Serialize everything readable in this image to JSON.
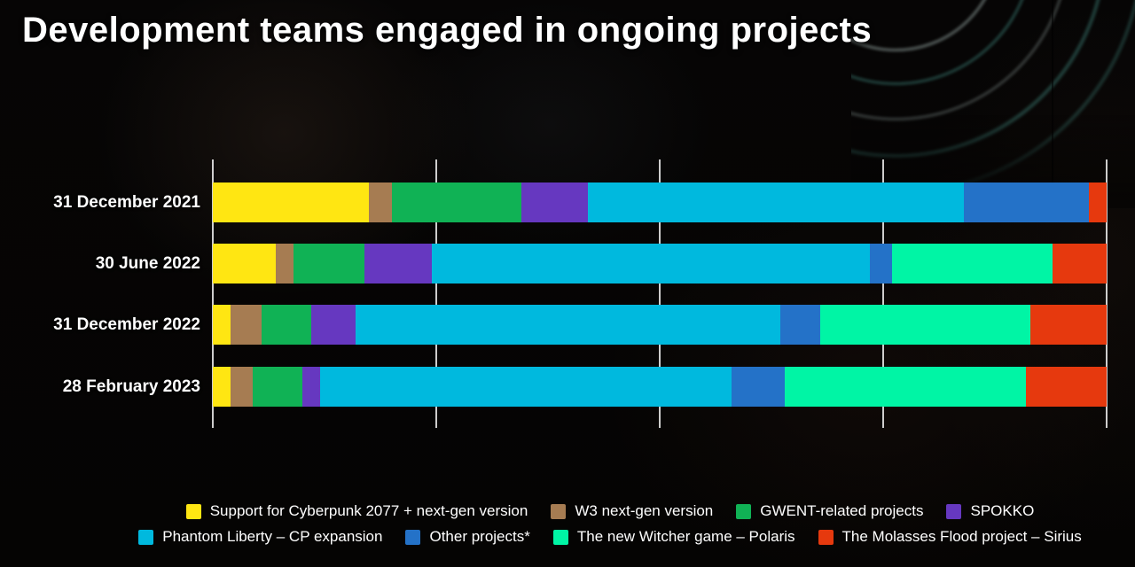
{
  "title": "Development teams engaged in ongoing projects",
  "background": {
    "style": "dark photo still with neon concentric arcs top-right",
    "neon_arc_colors": [
      "#cfe6e2",
      "#5ec8ba"
    ]
  },
  "chart_data": {
    "type": "bar",
    "variant": "horizontal-stacked-100pct",
    "title": "Development teams engaged in ongoing projects",
    "categories": [
      "31 December 2021",
      "30 June 2022",
      "31 December 2022",
      "28 February 2023"
    ],
    "series": [
      {
        "name": "Support for Cyberpunk 2077 + next-gen version",
        "color": "#FFE612",
        "values": [
          17.5,
          7,
          2,
          2
        ]
      },
      {
        "name": "W3 next-gen version",
        "color": "#A67C52",
        "values": [
          2.5,
          2,
          3.5,
          2.5
        ]
      },
      {
        "name": "GWENT-related projects",
        "color": "#10B255",
        "values": [
          14.5,
          8,
          5.5,
          5.5
        ]
      },
      {
        "name": "SPOKKO",
        "color": "#6638C0",
        "values": [
          7.5,
          7.5,
          5,
          2
        ]
      },
      {
        "name": "Phantom Liberty – CP expansion",
        "color": "#00B9DE",
        "values": [
          42,
          49,
          47.5,
          46
        ]
      },
      {
        "name": "Other projects*",
        "color": "#2472C8",
        "values": [
          14,
          2.5,
          4.5,
          6
        ]
      },
      {
        "name": "The new Witcher game – Polaris",
        "color": "#00F5A5",
        "values": [
          0,
          18,
          23.5,
          27
        ]
      },
      {
        "name": "The Molasses Flood project – Sirius",
        "color": "#E6390E",
        "values": [
          2,
          6,
          8.5,
          9
        ]
      }
    ],
    "xlim": [
      0,
      100
    ],
    "gridlines_percent": [
      0,
      25,
      50,
      75,
      100
    ],
    "grid": true,
    "value_labels": false,
    "legend_position": "bottom",
    "legend_rows": [
      [
        0,
        1,
        2,
        3
      ],
      [
        4,
        5,
        6,
        7
      ]
    ]
  }
}
